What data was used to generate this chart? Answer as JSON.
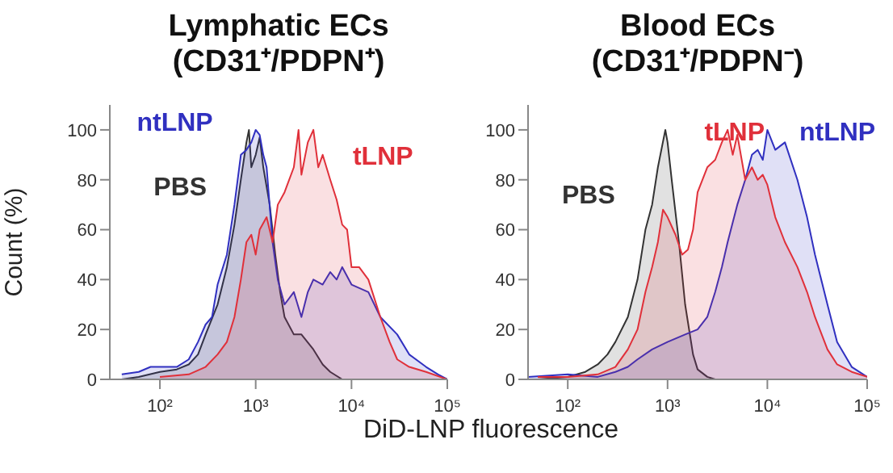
{
  "chart_data": [
    {
      "type": "area",
      "title": "Lymphatic ECs",
      "subtitle": "(CD31⁺/PDPN⁺)",
      "ylabel": "Count (%)",
      "log": "x",
      "xlim": [
        30,
        100000
      ],
      "xticks": [
        {
          "value": 100,
          "label": "10²"
        },
        {
          "value": 1000,
          "label": "10³"
        },
        {
          "value": 10000,
          "label": "10⁴"
        },
        {
          "value": 100000,
          "label": "10⁵"
        }
      ],
      "ylim": [
        0,
        110
      ],
      "yticks": [
        0,
        20,
        40,
        60,
        80,
        100
      ],
      "series": [
        {
          "name": "PBS",
          "color": "#333333",
          "x": [
            40,
            60,
            100,
            150,
            200,
            250,
            300,
            400,
            500,
            600,
            700,
            800,
            850,
            900,
            1000,
            1100,
            1200,
            1400,
            1600,
            1800,
            2000,
            2500,
            3000,
            4000,
            5000,
            6000,
            8000
          ],
          "values": [
            0,
            1,
            3,
            4,
            6,
            10,
            18,
            30,
            45,
            62,
            80,
            95,
            100,
            85,
            90,
            97,
            85,
            70,
            50,
            35,
            25,
            18,
            18,
            12,
            6,
            3,
            0
          ]
        },
        {
          "name": "ntLNP",
          "color": "#3030c0",
          "x": [
            40,
            60,
            80,
            100,
            150,
            200,
            250,
            300,
            350,
            400,
            500,
            600,
            700,
            800,
            900,
            1000,
            1100,
            1200,
            1300,
            1500,
            1700,
            2000,
            2500,
            3000,
            3500,
            4000,
            5000,
            6000,
            7000,
            8000,
            10000,
            15000,
            20000,
            30000,
            40000,
            60000,
            80000,
            100000
          ],
          "values": [
            2,
            3,
            5,
            5,
            5,
            8,
            15,
            22,
            25,
            38,
            50,
            70,
            90,
            92,
            95,
            100,
            98,
            90,
            85,
            55,
            40,
            30,
            35,
            25,
            35,
            40,
            38,
            43,
            40,
            45,
            38,
            35,
            25,
            18,
            10,
            5,
            2,
            0
          ]
        },
        {
          "name": "tLNP",
          "color": "#e0303a",
          "x": [
            100,
            200,
            300,
            400,
            500,
            600,
            700,
            800,
            900,
            1000,
            1100,
            1300,
            1500,
            1700,
            2000,
            2500,
            2800,
            3000,
            3500,
            4000,
            4500,
            5000,
            6000,
            7000,
            8000,
            9000,
            10000,
            12000,
            15000,
            20000,
            25000,
            30000,
            40000,
            60000,
            100000
          ],
          "values": [
            1,
            2,
            5,
            10,
            15,
            25,
            40,
            55,
            58,
            50,
            60,
            65,
            55,
            70,
            75,
            85,
            100,
            82,
            95,
            100,
            85,
            90,
            80,
            72,
            62,
            60,
            45,
            45,
            40,
            25,
            15,
            8,
            5,
            3,
            0
          ]
        }
      ]
    },
    {
      "type": "area",
      "title": "Blood ECs",
      "subtitle": "(CD31⁺/PDPN⁻)",
      "xlabel": "DiD-LNP fluorescence",
      "log": "x",
      "xlim": [
        40,
        100000
      ],
      "xticks": [
        {
          "value": 100,
          "label": "10²"
        },
        {
          "value": 1000,
          "label": "10³"
        },
        {
          "value": 10000,
          "label": "10⁴"
        },
        {
          "value": 100000,
          "label": "10⁵"
        }
      ],
      "ylim": [
        0,
        110
      ],
      "yticks": [
        0,
        20,
        40,
        60,
        80,
        100
      ],
      "series": [
        {
          "name": "PBS",
          "color": "#333333",
          "x": [
            50,
            100,
            150,
            200,
            250,
            300,
            400,
            500,
            600,
            700,
            800,
            950,
            1000,
            1100,
            1300,
            1500,
            1800,
            2000,
            2500,
            3000
          ],
          "values": [
            0,
            1,
            3,
            6,
            10,
            15,
            25,
            40,
            60,
            70,
            85,
            100,
            95,
            80,
            55,
            30,
            10,
            4,
            1,
            0
          ]
        },
        {
          "name": "ntLNP",
          "color": "#3030c0",
          "x": [
            40,
            100,
            200,
            300,
            400,
            500,
            700,
            1000,
            1500,
            2000,
            2500,
            3000,
            3500,
            4000,
            5000,
            6000,
            7000,
            8000,
            9000,
            10000,
            12000,
            15000,
            20000,
            25000,
            30000,
            40000,
            50000,
            70000,
            100000
          ],
          "values": [
            1,
            2,
            1,
            3,
            5,
            8,
            12,
            15,
            18,
            20,
            25,
            35,
            45,
            55,
            70,
            80,
            90,
            92,
            88,
            100,
            92,
            95,
            80,
            65,
            50,
            30,
            15,
            5,
            1
          ]
        },
        {
          "name": "tLNP",
          "color": "#e0303a",
          "x": [
            50,
            100,
            200,
            300,
            400,
            500,
            600,
            700,
            800,
            900,
            1000,
            1200,
            1400,
            1600,
            1800,
            2000,
            2500,
            3000,
            3500,
            4000,
            4500,
            5000,
            6000,
            7000,
            8000,
            9000,
            10000,
            12000,
            15000,
            20000,
            25000,
            30000,
            40000,
            50000,
            70000,
            100000
          ],
          "values": [
            1,
            1,
            2,
            5,
            12,
            20,
            35,
            45,
            55,
            68,
            65,
            58,
            50,
            52,
            60,
            75,
            85,
            88,
            95,
            100,
            90,
            98,
            80,
            85,
            80,
            82,
            78,
            65,
            55,
            45,
            35,
            25,
            12,
            6,
            3,
            1
          ]
        }
      ]
    }
  ]
}
